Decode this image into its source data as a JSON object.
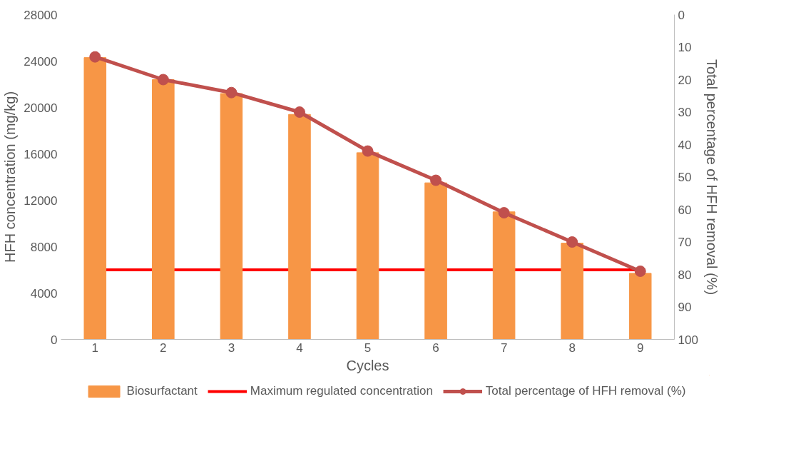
{
  "chart_data": {
    "type": "bar",
    "xlabel": "Cycles",
    "ylabel": "HFH concentration (mg/kg)",
    "y2label": "Total percentage of HFH removal (%)",
    "categories": [
      "1",
      "2",
      "3",
      "4",
      "5",
      "6",
      "7",
      "8",
      "9"
    ],
    "series": [
      {
        "name": "Biosurfactant",
        "color": "#f79646",
        "values": [
          24300,
          22400,
          21200,
          19400,
          16100,
          13500,
          11000,
          8300,
          5700
        ]
      },
      {
        "name": "Total percentage of HFH removal (%)",
        "type": "line",
        "axis": "y2",
        "color": "#c0504d",
        "marker": "circle",
        "values": [
          13,
          20,
          24,
          30,
          42,
          51,
          61,
          70,
          79
        ]
      }
    ],
    "ref_lines": [
      {
        "axis": "y",
        "value": 6000,
        "label": "Maximum regulated concentration",
        "color": "#ff0000"
      }
    ],
    "ylim": [
      0,
      28000
    ],
    "yticks": [
      0,
      4000,
      8000,
      12000,
      16000,
      20000,
      24000,
      28000
    ],
    "y2lim": [
      100,
      0
    ],
    "y2ticks": [
      0,
      10,
      20,
      30,
      40,
      50,
      60,
      70,
      80,
      90,
      100
    ],
    "grid": false,
    "legend": "bottom"
  }
}
